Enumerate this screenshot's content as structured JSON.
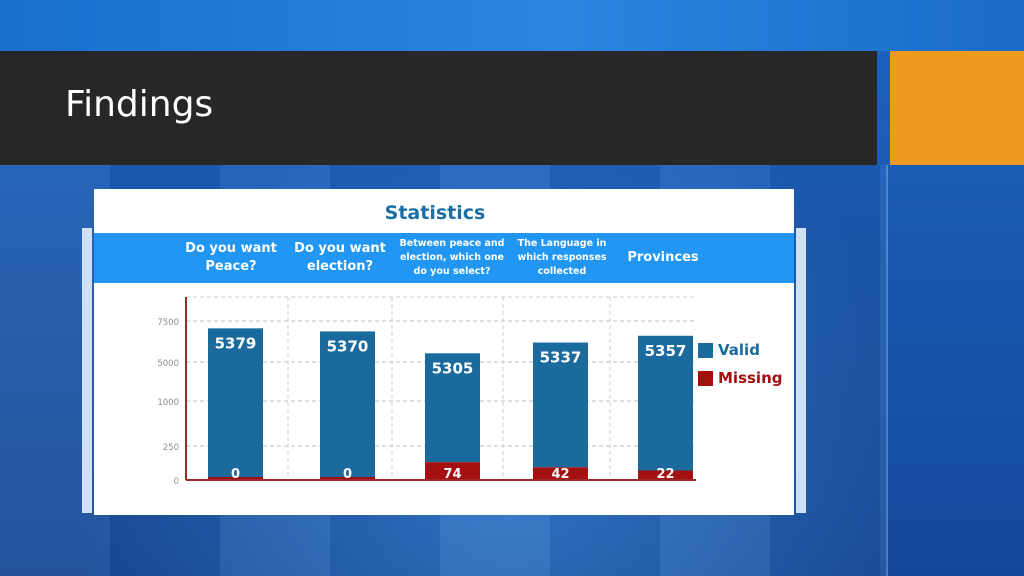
{
  "slide": {
    "title": "Findings"
  },
  "colors": {
    "valid": "#1a6a9e",
    "missing": "#a40f10",
    "header": "#2196f3",
    "title_text": "#1c6fa5",
    "axis": "#9c2a2a",
    "orange": "#ef9a1c"
  },
  "chart_data": {
    "type": "bar",
    "stacked": true,
    "title": "Statistics",
    "categories": [
      "Do you want Peace?",
      "Do you want election?",
      "Between peace and election, which one do you select?",
      "The Language in which responses collected",
      "Provinces"
    ],
    "series": [
      {
        "name": "Missing",
        "values": [
          0,
          0,
          74,
          42,
          22
        ]
      },
      {
        "name": "Valid",
        "values": [
          5379,
          5370,
          5305,
          5337,
          5357
        ]
      }
    ],
    "y_ticks": [
      0,
      250,
      1000,
      5000,
      7500
    ],
    "y_scale": "nonlinear (uneven tick spacing as printed)",
    "legend": [
      "Valid",
      "Missing"
    ],
    "legend_position": "right",
    "grid": true
  }
}
